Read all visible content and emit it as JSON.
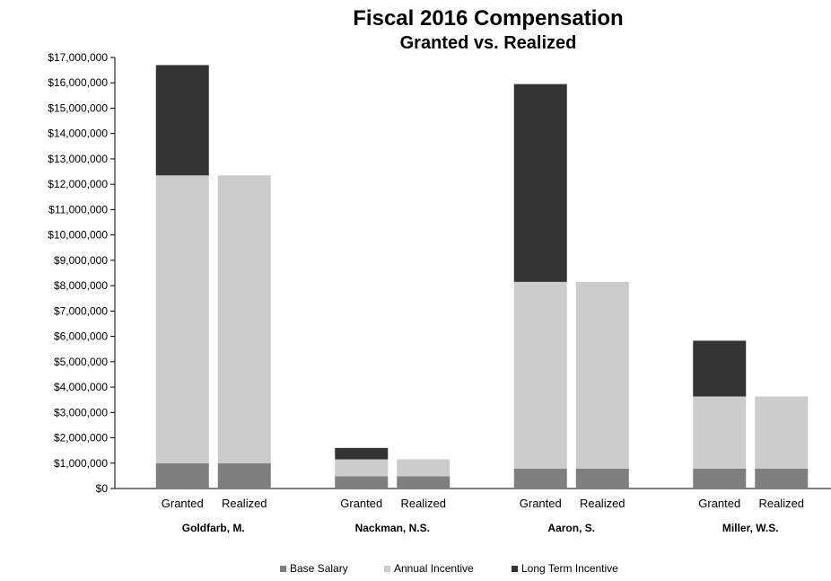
{
  "chart_data": {
    "type": "bar",
    "stacked": true,
    "title": "Fiscal 2016 Compensation",
    "subtitle": "Granted vs. Realized",
    "ylim": [
      0,
      17000000
    ],
    "yticks": [
      "$0",
      "$1,000,000",
      "$2,000,000",
      "$3,000,000",
      "$4,000,000",
      "$5,000,000",
      "$6,000,000",
      "$7,000,000",
      "$8,000,000",
      "$9,000,000",
      "$10,000,000",
      "$11,000,000",
      "$12,000,000",
      "$13,000,000",
      "$14,000,000",
      "$15,000,000",
      "$16,000,000",
      "$17,000,000"
    ],
    "grid": false,
    "legend_position": "bottom",
    "groups": [
      {
        "name": "Goldfarb,  M.",
        "bars": [
          {
            "label": "Granted",
            "values": [
              1000000,
              11350000,
              4350000
            ]
          },
          {
            "label": "Realized",
            "values": [
              1000000,
              11350000,
              0
            ]
          }
        ]
      },
      {
        "name": "Nackman, N.S.",
        "bars": [
          {
            "label": "Granted",
            "values": [
              480000,
              670000,
              450000
            ]
          },
          {
            "label": "Realized",
            "values": [
              480000,
              670000,
              0
            ]
          }
        ]
      },
      {
        "name": "Aaron, S.",
        "bars": [
          {
            "label": "Granted",
            "values": [
              780000,
              7370000,
              7800000
            ]
          },
          {
            "label": "Realized",
            "values": [
              780000,
              7370000,
              0
            ]
          }
        ]
      },
      {
        "name": "Miller, W.S.",
        "bars": [
          {
            "label": "Granted",
            "values": [
              780000,
              2850000,
              2200000
            ]
          },
          {
            "label": "Realized",
            "values": [
              780000,
              2850000,
              0
            ]
          }
        ]
      }
    ],
    "series": [
      {
        "name": "Base Salary",
        "color": "#7f7f7f"
      },
      {
        "name": "Annual Incentive",
        "color": "#cccccc"
      },
      {
        "name": "Long Term Incentive",
        "color": "#333333"
      }
    ]
  }
}
